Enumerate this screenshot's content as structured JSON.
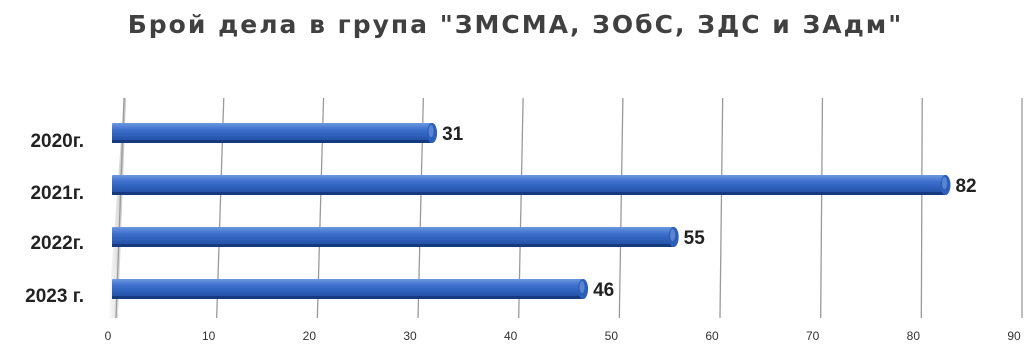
{
  "chart_data": {
    "type": "bar",
    "orientation": "horizontal",
    "title": "Брой дела в група \"ЗМСМА, ЗОбС, ЗДС и ЗАдм\"",
    "categories": [
      "2020г.",
      "2021г.",
      "2022г.",
      "2023 г."
    ],
    "values": [
      31,
      82,
      55,
      46
    ],
    "xlim": [
      0,
      90
    ],
    "xticks": [
      0,
      10,
      20,
      30,
      40,
      50,
      60,
      70,
      80,
      90
    ],
    "grid": true,
    "legend": "none",
    "colors": {
      "bar": "#2E5FB8",
      "bar_highlight": "#6C97E0",
      "bar_shadow": "#163A80",
      "grid": "#9A9A9A"
    }
  }
}
